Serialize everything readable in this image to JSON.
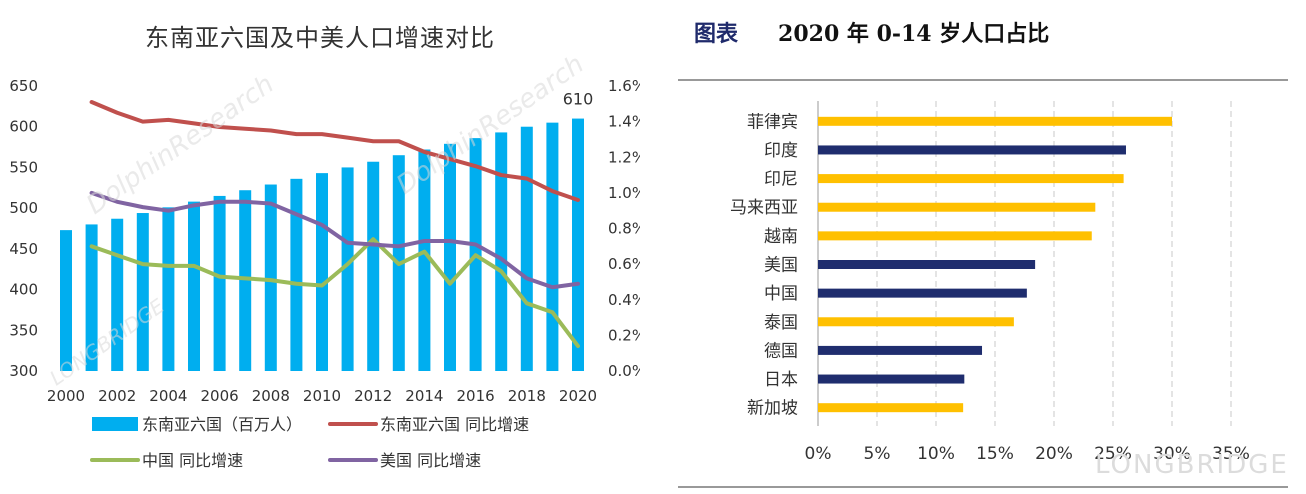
{
  "left_chart": {
    "title": "东南亚六国及中美人口增速对比",
    "annotation": "610",
    "chart_data": {
      "type": "bar+line",
      "x": [
        2000,
        2001,
        2002,
        2003,
        2004,
        2005,
        2006,
        2007,
        2008,
        2009,
        2010,
        2011,
        2012,
        2013,
        2014,
        2015,
        2016,
        2017,
        2018,
        2019,
        2020
      ],
      "x_ticks": [
        "2000",
        "2002",
        "2004",
        "2006",
        "2008",
        "2010",
        "2012",
        "2014",
        "2016",
        "2018",
        "2020"
      ],
      "y_left": {
        "ticks": [
          "300",
          "350",
          "400",
          "450",
          "500",
          "550",
          "600",
          "650"
        ],
        "range": [
          300,
          650
        ]
      },
      "y_right": {
        "ticks": [
          "0.0%",
          "0.2%",
          "0.4%",
          "0.6%",
          "0.8%",
          "1.0%",
          "1.2%",
          "1.4%",
          "1.6%"
        ],
        "range": [
          0,
          1.6
        ]
      },
      "bars": {
        "name": "东南亚六国（百万人）",
        "color": "#00aeef",
        "values": [
          473,
          480,
          487,
          494,
          501,
          508,
          515,
          522,
          529,
          536,
          543,
          550,
          557,
          565,
          572,
          579,
          586,
          593,
          600,
          605,
          610
        ]
      },
      "series": [
        {
          "name": "东南亚六国 同比增速",
          "color": "#c0504d",
          "axis": "right",
          "x": [
            2001,
            2002,
            2003,
            2004,
            2005,
            2006,
            2007,
            2008,
            2009,
            2010,
            2011,
            2012,
            2013,
            2014,
            2015,
            2016,
            2017,
            2018,
            2019,
            2020
          ],
          "values": [
            1.51,
            1.45,
            1.4,
            1.41,
            1.39,
            1.37,
            1.36,
            1.35,
            1.33,
            1.33,
            1.31,
            1.29,
            1.29,
            1.23,
            1.19,
            1.15,
            1.1,
            1.08,
            1.01,
            0.96
          ]
        },
        {
          "name": "中国 同比增速",
          "color": "#9bbb59",
          "axis": "right",
          "x": [
            2001,
            2002,
            2003,
            2004,
            2005,
            2006,
            2007,
            2008,
            2009,
            2010,
            2011,
            2012,
            2013,
            2014,
            2015,
            2016,
            2017,
            2018,
            2019,
            2020
          ],
          "values": [
            0.7,
            0.65,
            0.6,
            0.59,
            0.59,
            0.53,
            0.52,
            0.51,
            0.49,
            0.48,
            0.6,
            0.74,
            0.6,
            0.67,
            0.49,
            0.65,
            0.56,
            0.38,
            0.33,
            0.14
          ]
        },
        {
          "name": "美国 同比增速",
          "color": "#8064a2",
          "axis": "right",
          "x": [
            2001,
            2002,
            2003,
            2004,
            2005,
            2006,
            2007,
            2008,
            2009,
            2010,
            2011,
            2012,
            2013,
            2014,
            2015,
            2016,
            2017,
            2018,
            2019,
            2020
          ],
          "values": [
            1.0,
            0.95,
            0.92,
            0.9,
            0.93,
            0.95,
            0.95,
            0.94,
            0.88,
            0.82,
            0.72,
            0.71,
            0.7,
            0.73,
            0.73,
            0.71,
            0.63,
            0.52,
            0.47,
            0.49
          ]
        }
      ],
      "legend": [
        {
          "label": "东南亚六国（百万人）",
          "color": "#00aeef",
          "kind": "bar"
        },
        {
          "label": "东南亚六国 同比增速",
          "color": "#c0504d",
          "kind": "line"
        },
        {
          "label": "中国 同比增速",
          "color": "#9bbb59",
          "kind": "line"
        },
        {
          "label": "美国 同比增速",
          "color": "#8064a2",
          "kind": "line"
        }
      ]
    }
  },
  "right_chart": {
    "tag": "图表",
    "title": "2020 年 0-14 岁人口占比",
    "chart_data": {
      "type": "bar-horizontal",
      "categories": [
        "菲律宾",
        "印度",
        "印尼",
        "马来西亚",
        "越南",
        "美国",
        "中国",
        "泰国",
        "德国",
        "日本",
        "新加坡"
      ],
      "values": [
        30.0,
        26.1,
        25.9,
        23.5,
        23.2,
        18.4,
        17.7,
        16.6,
        13.9,
        12.4,
        12.3
      ],
      "colors": [
        "#ffc000",
        "#1f2d6e",
        "#ffc000",
        "#ffc000",
        "#ffc000",
        "#1f2d6e",
        "#1f2d6e",
        "#ffc000",
        "#1f2d6e",
        "#1f2d6e",
        "#ffc000"
      ],
      "x_ticks": [
        "0%",
        "5%",
        "10%",
        "15%",
        "20%",
        "25%",
        "30%",
        "35%"
      ],
      "xlim": [
        0,
        35
      ]
    }
  },
  "watermarks": [
    "LONGBRIDGE",
    "DolphinResearch"
  ]
}
